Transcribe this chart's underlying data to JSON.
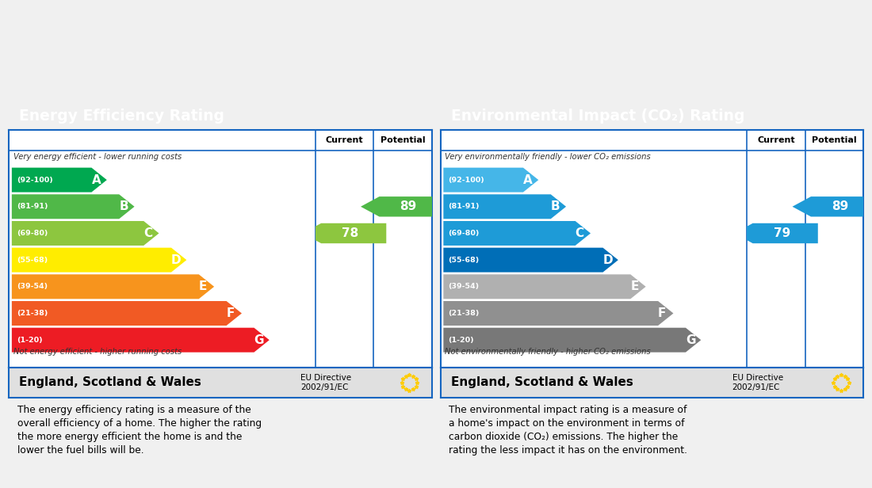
{
  "fig_width": 11.0,
  "fig_height": 6.16,
  "bg_color": "#f0f0f0",
  "header_bg": "#1565c0",
  "panel_border_color": "#1565c0",
  "panel_bg": "#ffffff",
  "left_title": "Energy Efficiency Rating",
  "right_title": "Environmental Impact (CO₂) Rating",
  "epc_bands": [
    "A",
    "B",
    "C",
    "D",
    "E",
    "F",
    "G"
  ],
  "epc_ranges": [
    "(92-100)",
    "(81-91)",
    "(69-80)",
    "(55-68)",
    "(39-54)",
    "(21-38)",
    "(1-20)"
  ],
  "energy_colors": [
    "#00a850",
    "#50b848",
    "#8dc63f",
    "#ffed00",
    "#f7941d",
    "#f15a24",
    "#ed1c24"
  ],
  "co2_colors": [
    "#45b6e8",
    "#1e9bd7",
    "#1e9bd7",
    "#006eb7",
    "#b0b0b0",
    "#909090",
    "#787878"
  ],
  "current_energy": 78,
  "potential_energy": 89,
  "current_energy_band_idx": 2,
  "potential_energy_band_idx": 1,
  "current_co2": 79,
  "potential_co2": 89,
  "current_co2_band_idx": 2,
  "potential_co2_band_idx": 1,
  "footer_text": "England, Scotland & Wales",
  "eu_directive": "EU Directive\n2002/91/EC",
  "left_top_note": "Very energy efficient - lower running costs",
  "left_bottom_note": "Not energy efficient - higher running costs",
  "right_top_note": "Very environmentally friendly - lower CO₂ emissions",
  "right_bottom_note": "Not environmentally friendly - higher CO₂ emissions",
  "left_desc": "The energy efficiency rating is a measure of the\noverall efficiency of a home. The higher the rating\nthe more energy efficient the home is and the\nlower the fuel bills will be.",
  "right_desc": "The environmental impact rating is a measure of\na home's impact on the environment in terms of\ncarbon dioxide (CO₂) emissions. The higher the\nrating the less impact it has on the environment.",
  "arrow_color_energy_current": "#8dc63f",
  "arrow_color_energy_potential": "#50b848",
  "arrow_color_co2_current": "#1e9bd7",
  "arrow_color_co2_potential": "#1e9bd7"
}
